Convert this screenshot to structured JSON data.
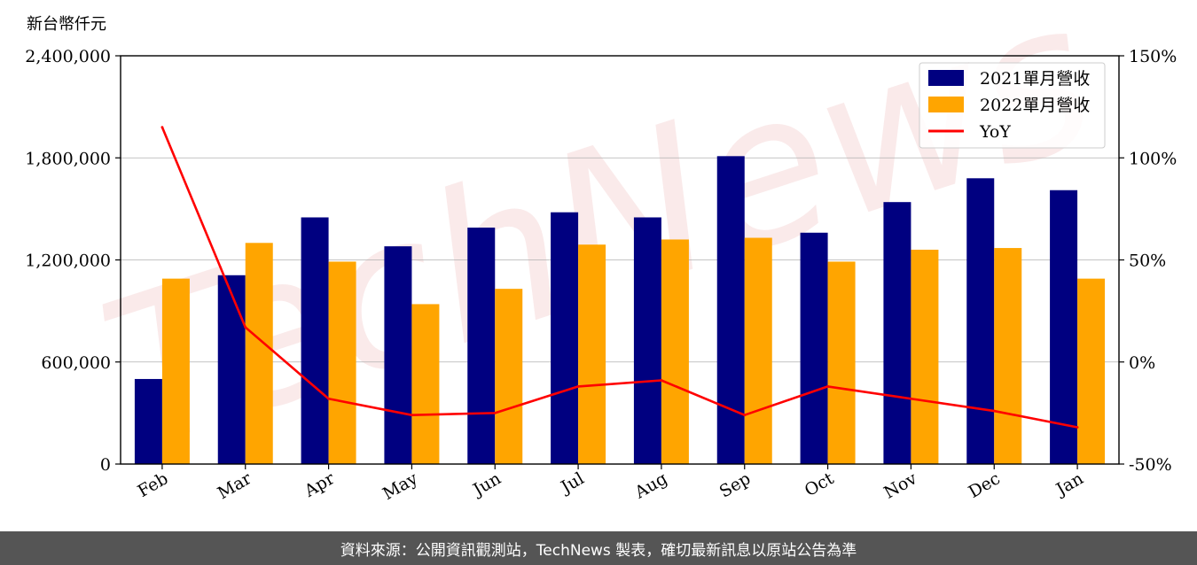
{
  "chart_data": {
    "type": "bar",
    "units_label": "新台幣仟元",
    "categories": [
      "Feb",
      "Mar",
      "Apr",
      "May",
      "Jun",
      "Jul",
      "Aug",
      "Sep",
      "Oct",
      "Nov",
      "Dec",
      "Jan"
    ],
    "series": [
      {
        "name": "2021單月營收",
        "type": "bar",
        "axis": "left",
        "color": "#000080",
        "values": [
          500000,
          1110000,
          1450000,
          1280000,
          1390000,
          1480000,
          1450000,
          1810000,
          1360000,
          1540000,
          1680000,
          1610000
        ]
      },
      {
        "name": "2022單月營收",
        "type": "bar",
        "axis": "left",
        "color": "#ffa500",
        "values": [
          1090000,
          1300000,
          1190000,
          940000,
          1030000,
          1290000,
          1320000,
          1330000,
          1190000,
          1260000,
          1270000,
          1090000
        ]
      },
      {
        "name": "YoY",
        "type": "line",
        "axis": "right",
        "color": "#ff0000",
        "values": [
          115,
          17,
          -18,
          -26,
          -25,
          -12,
          -9,
          -26,
          -12,
          -18,
          -24,
          -32
        ]
      }
    ],
    "y_left": {
      "min": 0,
      "max": 2400000,
      "ticks": [
        0,
        600000,
        1200000,
        1800000,
        2400000
      ],
      "tick_labels": [
        "0",
        "600,000",
        "1,200,000",
        "1,800,000",
        "2,400,000"
      ]
    },
    "y_right": {
      "min": -50,
      "max": 150,
      "ticks": [
        -50,
        0,
        50,
        100,
        150
      ],
      "tick_labels": [
        "-50%",
        "0%",
        "50%",
        "100%",
        "150%"
      ]
    },
    "grid": "horizontal",
    "legend_position": "top-right",
    "watermark": "TechNews"
  },
  "footer": {
    "source_text": "資料來源：公開資訊觀測站，TechNews 製表，確切最新訊息以原站公告為準"
  }
}
